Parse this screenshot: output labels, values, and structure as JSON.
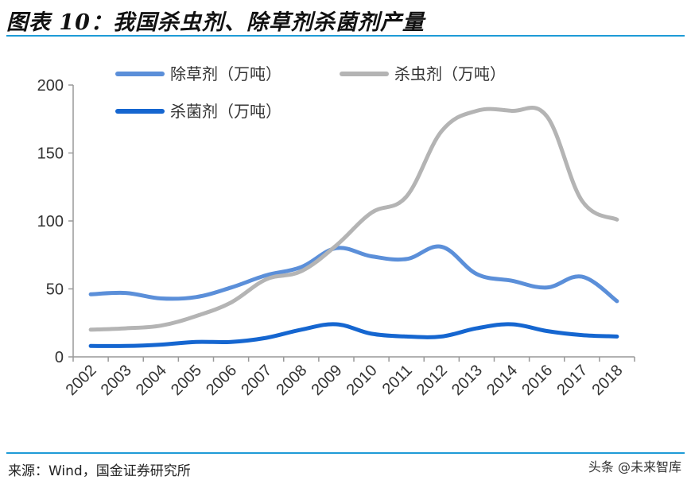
{
  "header": {
    "title": "图表 10：我国杀虫剂、除草剂杀菌剂产量"
  },
  "footer": {
    "source": "来源：Wind，国金证券研究所",
    "watermark": "头条 @未来智库"
  },
  "chart_data": {
    "type": "line",
    "title": "",
    "xlabel": "",
    "ylabel": "",
    "categories": [
      "2002",
      "2003",
      "2004",
      "2005",
      "2006",
      "2007",
      "2008",
      "2009",
      "2010",
      "2011",
      "2012",
      "2013",
      "2014",
      "2016",
      "2017",
      "2018"
    ],
    "ylim": [
      0,
      200
    ],
    "yticks": [
      0,
      50,
      100,
      150,
      200
    ],
    "grid": false,
    "legend": "top",
    "series": [
      {
        "name": "除草剂（万吨）",
        "color": "#5b8fd9",
        "values": [
          46,
          47,
          43,
          44,
          51,
          60,
          66,
          80,
          74,
          72,
          81,
          61,
          56,
          51,
          59,
          41
        ]
      },
      {
        "name": "杀虫剂（万吨）",
        "color": "#b4b4b4",
        "values": [
          20,
          21,
          23,
          30,
          40,
          57,
          63,
          82,
          106,
          118,
          166,
          181,
          181,
          177,
          115,
          101
        ]
      },
      {
        "name": "杀菌剂（万吨）",
        "color": "#1566d0",
        "values": [
          8,
          8,
          9,
          11,
          11,
          14,
          20,
          24,
          17,
          15,
          15,
          21,
          24,
          19,
          16,
          15
        ]
      }
    ]
  }
}
